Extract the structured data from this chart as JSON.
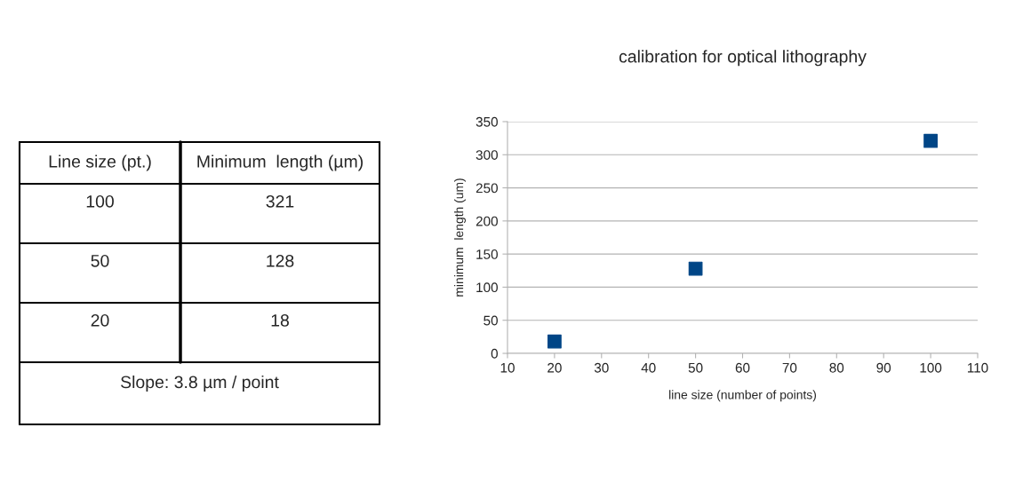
{
  "chart_data": [
    {
      "type": "other",
      "annotations": [
        "Line size (pt.)",
        "Minimum  length (µm)",
        "100",
        "321",
        "50",
        "128",
        "20",
        "18",
        "Slope: 3.8 µm / point"
      ]
    },
    {
      "type": "scatter",
      "title": "calibration for optical lithography",
      "xlabel": "line size (number of points)",
      "ylabel": "minimum  length (um)",
      "x": [
        100,
        50,
        20
      ],
      "series": [
        {
          "color": "#004586",
          "values": [
            321,
            128,
            18
          ]
        }
      ],
      "marker": "square",
      "xlim": [
        10,
        110
      ],
      "xticks": [
        10,
        20,
        30,
        40,
        50,
        60,
        70,
        80,
        90,
        100,
        110
      ],
      "ylim": [
        0,
        350
      ],
      "yticks": [
        0,
        50,
        100,
        150,
        200,
        250,
        300,
        350
      ],
      "grid": "y"
    }
  ]
}
